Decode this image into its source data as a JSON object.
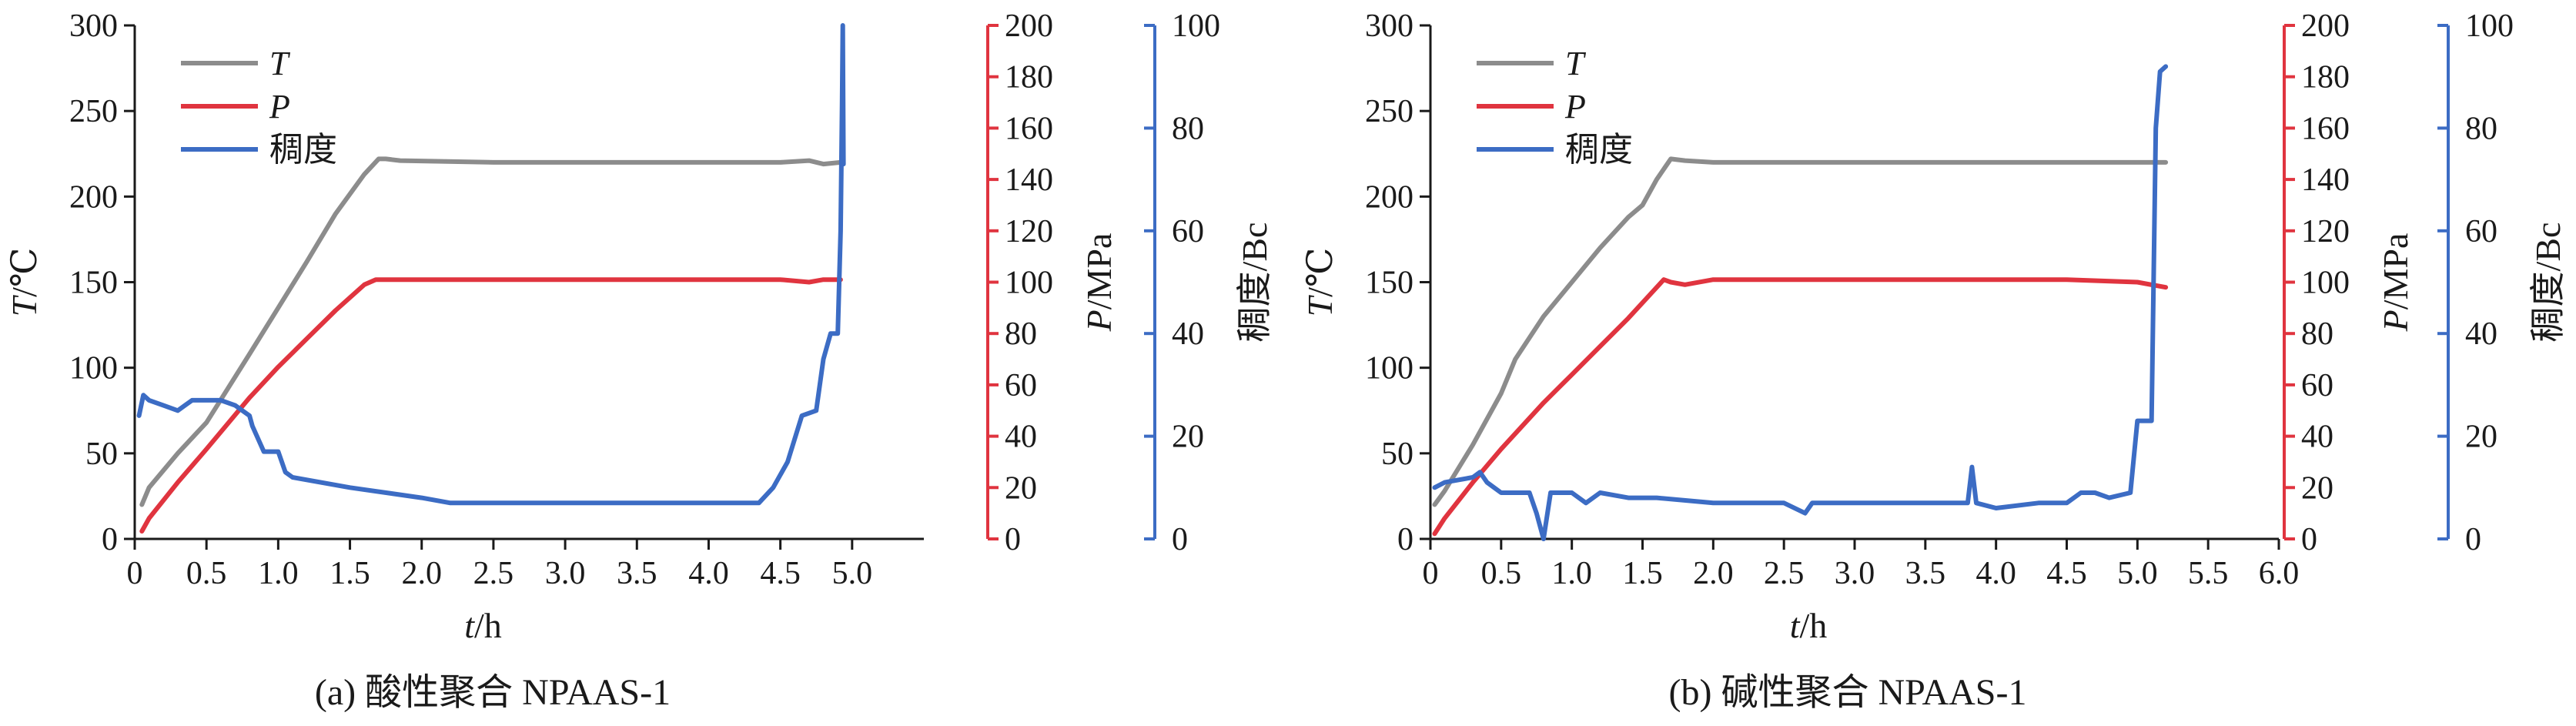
{
  "colors": {
    "T": "#8c8c8c",
    "P": "#e0343f",
    "C": "#3c6cc4",
    "axis": "#1a1a1a"
  },
  "chart_data": [
    {
      "type": "line",
      "caption": "(a) 酸性聚合 NPAAS-1",
      "xlabel": "t/h",
      "xlim": [
        0,
        5.5
      ],
      "xticks": [
        "0",
        "0.5",
        "1.0",
        "1.5",
        "2.0",
        "2.5",
        "3.0",
        "3.5",
        "4.0",
        "4.5",
        "5.0"
      ],
      "y_left": {
        "label": "T/℃",
        "lim": [
          0,
          300
        ],
        "ticks": [
          "0",
          "50",
          "100",
          "150",
          "200",
          "250",
          "300"
        ]
      },
      "y_right1": {
        "label": "P/MPa",
        "lim": [
          0,
          200
        ],
        "ticks": [
          "0",
          "20",
          "40",
          "60",
          "80",
          "100",
          "120",
          "140",
          "160",
          "180",
          "200"
        ]
      },
      "y_right2": {
        "label": "稠度/Bc",
        "lim": [
          0,
          100
        ],
        "ticks": [
          "0",
          "20",
          "40",
          "60",
          "80",
          "100"
        ]
      },
      "legend": [
        "T",
        "P",
        "稠度"
      ],
      "series": [
        {
          "name": "T",
          "axis": "y_left",
          "x": [
            0.05,
            0.1,
            0.3,
            0.5,
            0.8,
            1.0,
            1.2,
            1.4,
            1.6,
            1.7,
            1.75,
            1.85,
            2.5,
            3.0,
            3.5,
            4.0,
            4.5,
            4.7,
            4.8,
            4.92
          ],
          "y": [
            20,
            30,
            50,
            68,
            108,
            135,
            162,
            190,
            213,
            222,
            222,
            221,
            220,
            220,
            220,
            220,
            220,
            221,
            219,
            220
          ]
        },
        {
          "name": "P",
          "axis": "y_right1",
          "x": [
            0.05,
            0.1,
            0.3,
            0.5,
            0.8,
            1.0,
            1.2,
            1.4,
            1.6,
            1.68,
            2.0,
            2.5,
            3.0,
            3.5,
            4.0,
            4.5,
            4.7,
            4.8,
            4.92
          ],
          "y": [
            3,
            8,
            22,
            35,
            55,
            67,
            78,
            89,
            99,
            101,
            101,
            101,
            101,
            101,
            101,
            101,
            100,
            101,
            101
          ]
        },
        {
          "name": "稠度",
          "axis": "y_right2",
          "x": [
            0.03,
            0.06,
            0.1,
            0.2,
            0.3,
            0.35,
            0.4,
            0.5,
            0.6,
            0.7,
            0.75,
            0.8,
            0.82,
            0.9,
            0.95,
            1.0,
            1.05,
            1.1,
            1.5,
            2.0,
            2.2,
            2.5,
            3.0,
            4.0,
            4.35,
            4.45,
            4.55,
            4.65,
            4.75,
            4.8,
            4.85,
            4.9,
            4.92,
            4.93,
            4.935,
            4.94
          ],
          "y": [
            24,
            28,
            27,
            26,
            25,
            26,
            27,
            27,
            27,
            26,
            25,
            24,
            22,
            17,
            17,
            17,
            13,
            12,
            10,
            8,
            7,
            7,
            7,
            7,
            7,
            10,
            15,
            24,
            25,
            35,
            40,
            40,
            60,
            85,
            100,
            73
          ]
        }
      ]
    },
    {
      "type": "line",
      "caption": "(b) 碱性聚合 NPAAS-1",
      "xlabel": "t/h",
      "xlim": [
        0,
        6.0
      ],
      "xticks": [
        "0",
        "0.5",
        "1.0",
        "1.5",
        "2.0",
        "2.5",
        "3.0",
        "3.5",
        "4.0",
        "4.5",
        "5.0",
        "5.5",
        "6.0"
      ],
      "y_left": {
        "label": "T/℃",
        "lim": [
          0,
          300
        ],
        "ticks": [
          "0",
          "50",
          "100",
          "150",
          "200",
          "250",
          "300"
        ]
      },
      "y_right1": {
        "label": "P/MPa",
        "lim": [
          0,
          200
        ],
        "ticks": [
          "0",
          "20",
          "40",
          "60",
          "80",
          "100",
          "120",
          "140",
          "160",
          "180",
          "200"
        ]
      },
      "y_right2": {
        "label": "稠度/Bc",
        "lim": [
          0,
          100
        ],
        "ticks": [
          "0",
          "20",
          "40",
          "60",
          "80",
          "100"
        ]
      },
      "legend": [
        "T",
        "P",
        "稠度"
      ],
      "series": [
        {
          "name": "T",
          "axis": "y_left",
          "x": [
            0.03,
            0.1,
            0.3,
            0.5,
            0.55,
            0.6,
            0.8,
            1.0,
            1.2,
            1.4,
            1.5,
            1.6,
            1.7,
            1.8,
            2.0,
            2.5,
            3.0,
            3.5,
            4.0,
            4.5,
            5.0,
            5.2
          ],
          "y": [
            20,
            28,
            55,
            85,
            95,
            105,
            130,
            150,
            170,
            188,
            195,
            210,
            222,
            221,
            220,
            220,
            220,
            220,
            220,
            220,
            220,
            220
          ]
        },
        {
          "name": "P",
          "axis": "y_right1",
          "x": [
            0.03,
            0.1,
            0.3,
            0.5,
            0.8,
            1.0,
            1.2,
            1.4,
            1.65,
            1.7,
            1.8,
            2.0,
            2.5,
            3.0,
            3.5,
            4.0,
            4.5,
            5.0,
            5.2
          ],
          "y": [
            2,
            8,
            22,
            35,
            53,
            64,
            75,
            86,
            101,
            100,
            99,
            101,
            101,
            101,
            101,
            101,
            101,
            100,
            98
          ]
        },
        {
          "name": "稠度",
          "axis": "y_right2",
          "x": [
            0.03,
            0.1,
            0.3,
            0.35,
            0.4,
            0.5,
            0.7,
            0.75,
            0.8,
            0.85,
            1.0,
            1.1,
            1.2,
            1.4,
            1.6,
            2.0,
            2.5,
            2.65,
            2.7,
            3.0,
            3.5,
            3.8,
            3.83,
            3.86,
            4.0,
            4.3,
            4.5,
            4.6,
            4.7,
            4.8,
            4.95,
            5.0,
            5.05,
            5.1,
            5.13,
            5.16,
            5.2
          ],
          "y": [
            10,
            11,
            12,
            13,
            11,
            9,
            9,
            5,
            0,
            9,
            9,
            7,
            9,
            8,
            8,
            7,
            7,
            5,
            7,
            7,
            7,
            7,
            14,
            7,
            6,
            7,
            7,
            9,
            9,
            8,
            9,
            23,
            23,
            23,
            80,
            91,
            92
          ]
        }
      ]
    }
  ]
}
